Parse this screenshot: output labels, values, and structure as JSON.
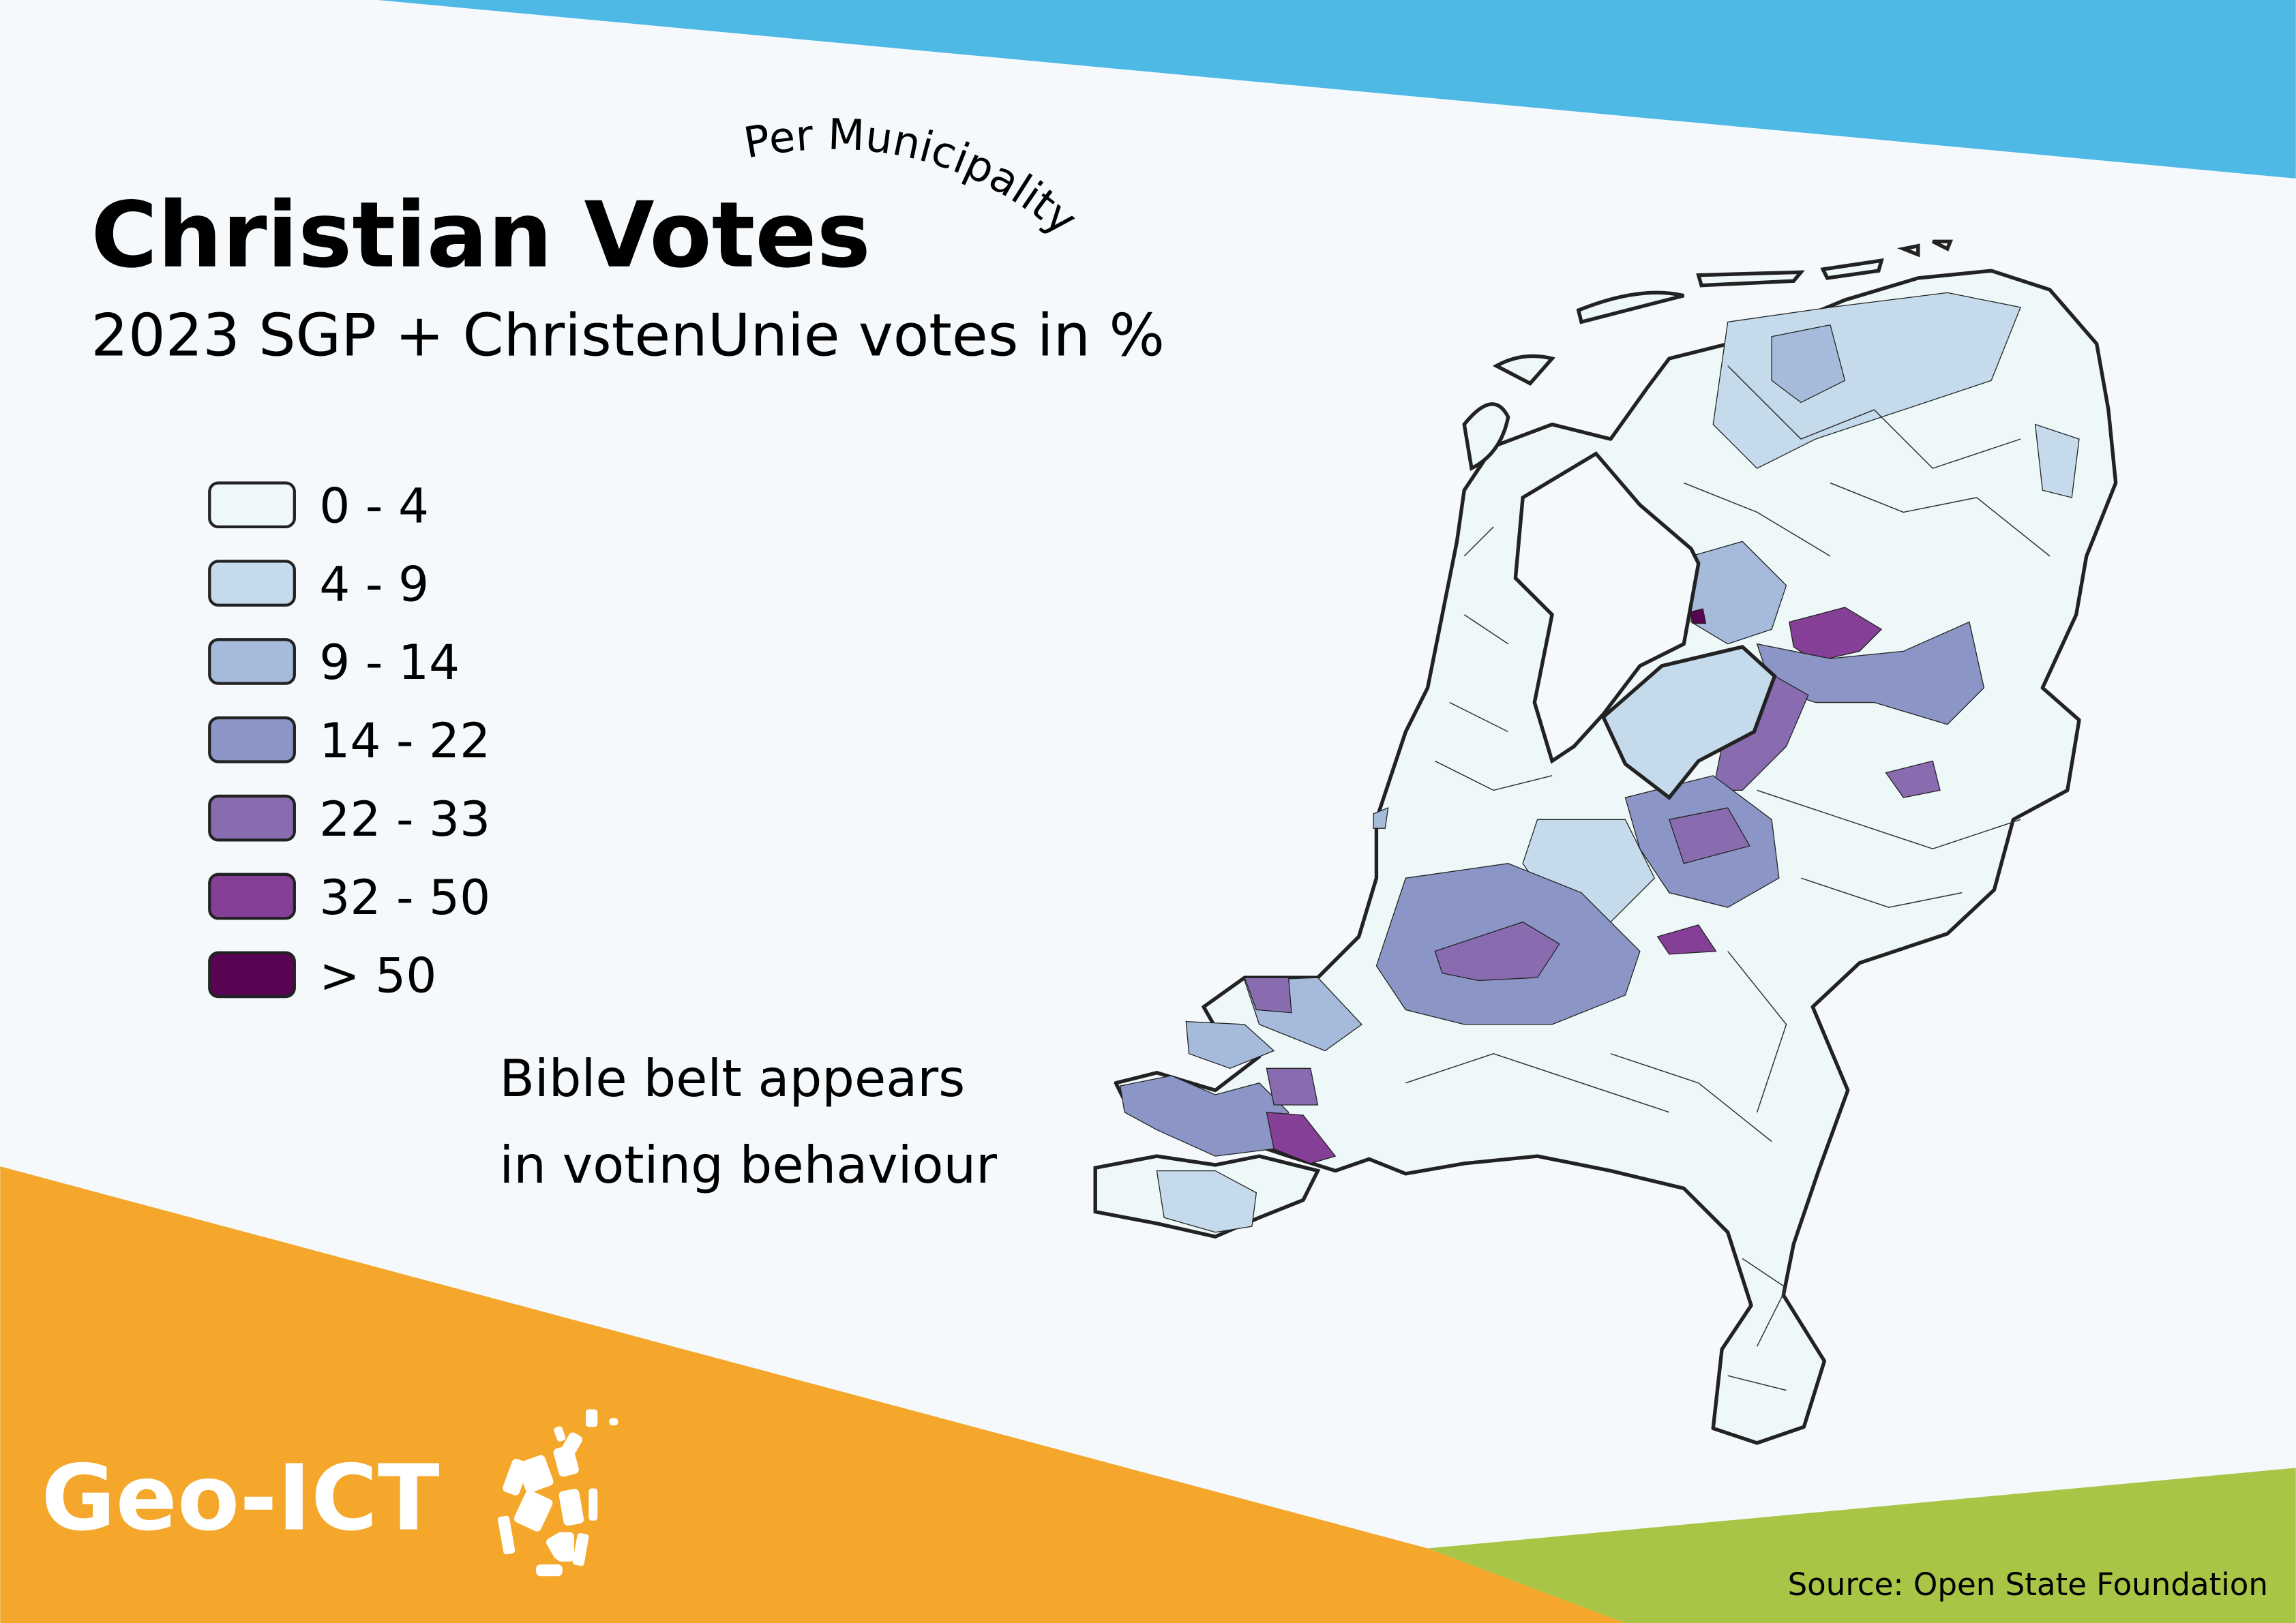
{
  "header": {
    "title": "Christian Votes",
    "subtitle": "2023 SGP + ChristenUnie votes in %",
    "curved_label": "Per Municipality"
  },
  "legend": [
    {
      "label": "0 - 4",
      "color": "#eef8f8"
    },
    {
      "label": "4 - 9",
      "color": "#c5dbec"
    },
    {
      "label": "9 - 14",
      "color": "#a6bbdb"
    },
    {
      "label": "14 - 22",
      "color": "#8b96c6"
    },
    {
      "label": "22 - 33",
      "color": "#896bb0"
    },
    {
      "label": "32 - 50",
      "color": "#853f97"
    },
    {
      "label": "> 50",
      "color": "#590452"
    }
  ],
  "annotation": {
    "line1": "Bible belt appears",
    "line2": "in voting behaviour"
  },
  "footer": {
    "logo_text": "Geo-ICT",
    "source": "Source: Open State Foundation"
  },
  "colors": {
    "background": "#f5f9fc",
    "top_band": "#4fb9e6",
    "orange_band": "#f4a72b",
    "green_band": "#a8c545",
    "outline": "#222222"
  }
}
